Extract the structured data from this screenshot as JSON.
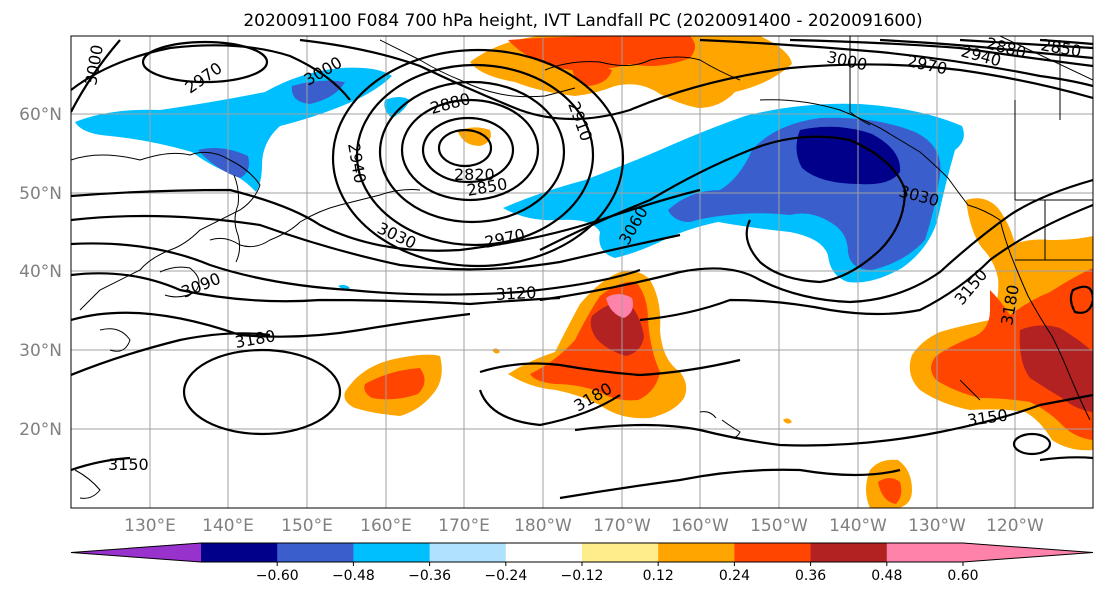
{
  "title": "2020091100 F084 700 hPa height, IVT Landfall PC (2020091400 - 2020091600)",
  "lat_labels": [
    "60°N",
    "50°N",
    "40°N",
    "30°N",
    "20°N"
  ],
  "lon_labels": [
    "130°E",
    "140°E",
    "150°E",
    "160°E",
    "170°E",
    "180°W",
    "170°W",
    "160°W",
    "150°W",
    "140°W",
    "130°W",
    "120°W"
  ],
  "contour_labels": [
    "3000",
    "2970",
    "3000",
    "2880",
    "2910",
    "2940",
    "2820",
    "2850",
    "3030",
    "2970",
    "3060",
    "3000",
    "2970",
    "2940",
    "2880",
    "2850",
    "3030",
    "3090",
    "3120",
    "3180",
    "3150",
    "3180",
    "3150",
    "3180",
    "3150"
  ],
  "colorbar": {
    "ticks": [
      "−0.60",
      "−0.48",
      "−0.36",
      "−0.24",
      "−0.12",
      "0.12",
      "0.24",
      "0.36",
      "0.48",
      "0.60"
    ],
    "colors": [
      "#9932cc",
      "#00008b",
      "#3a5fcd",
      "#00bfff",
      "#b0e2ff",
      "#ffffff",
      "#ffec8b",
      "#ffa500",
      "#ff4500",
      "#b22222",
      "#ff82ab",
      "#ff82ab"
    ]
  },
  "colors": {
    "neg_strong": "#00008b",
    "neg_mid": "#3a5fcd",
    "neg_light": "#00bfff",
    "pos_light": "#ffa500",
    "pos_mid": "#ff4500",
    "pos_strong": "#b22222",
    "pos_max": "#ff82ab"
  }
}
